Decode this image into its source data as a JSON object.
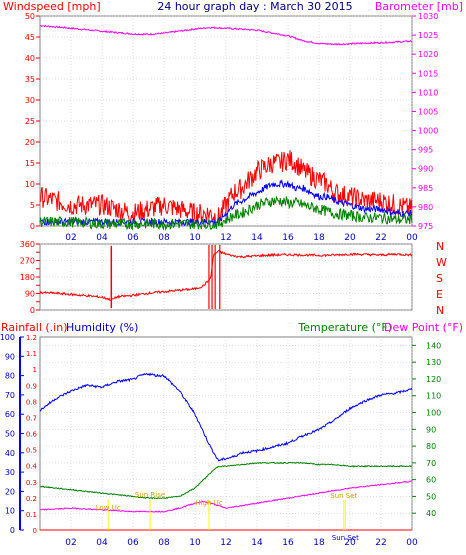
{
  "title": "24 hour graph day : March 30 2015",
  "colors": {
    "background": "#ffffff",
    "frame": "#808080",
    "grid": "#c0c0c0",
    "red": "#ff0000",
    "darkred": "#c00000",
    "magenta": "#ff00ff",
    "blue": "#0000ff",
    "darkblue": "#0000c0",
    "green": "#008000",
    "yellow": "#ffff00",
    "title": "#000080"
  },
  "labels": {
    "windspeed": "Windspeed [mph]",
    "barometer": "Barometer [mb]",
    "rainfall": "Rainfall (.in)",
    "humidity": "Humidity (%)",
    "temperature": "Temperature (°F)",
    "dewpoint": "Dew Point (°F)",
    "compass": [
      "N",
      "W",
      "S",
      "E",
      "N"
    ],
    "events": [
      {
        "text": "Low Uc",
        "x": 4.4
      },
      {
        "text": "Sun Rise",
        "x": 7.1
      },
      {
        "text": "High Uc",
        "x": 10.9
      },
      {
        "text": "Sun Set",
        "x": 19.6
      },
      {
        "text": "Sun Set",
        "x": 19.7
      }
    ]
  },
  "chart_data": [
    {
      "type": "line",
      "name": "wind-panel",
      "xlim": [
        0,
        24
      ],
      "x_ticks": [
        "02",
        "04",
        "06",
        "08",
        "10",
        "12",
        "14",
        "16",
        "18",
        "20",
        "22",
        "00"
      ],
      "left_axis": {
        "label": "Windspeed [mph]",
        "ylim": [
          0,
          50
        ],
        "ticks": [
          0,
          5,
          10,
          15,
          20,
          25,
          30,
          35,
          40,
          45,
          50
        ]
      },
      "right_axis": {
        "label": "Barometer [mb]",
        "ylim": [
          975,
          1030
        ],
        "ticks": [
          975,
          980,
          985,
          990,
          995,
          1000,
          1005,
          1010,
          1015,
          1020,
          1025,
          1030
        ]
      },
      "series": [
        {
          "axis": "right",
          "color": "magenta",
          "x": [
            0,
            2,
            4,
            6,
            7,
            8,
            10,
            11,
            12,
            14,
            16,
            17,
            18,
            19,
            20,
            21,
            22,
            23,
            24
          ],
          "y": [
            1027.5,
            1026.8,
            1026,
            1025.3,
            1025.2,
            1025.5,
            1026.6,
            1027,
            1026.8,
            1026.3,
            1024.8,
            1023.5,
            1022.8,
            1022.6,
            1022.7,
            1022.9,
            1023,
            1023.2,
            1023.4
          ]
        },
        {
          "axis": "left",
          "color": "red",
          "x": [
            0,
            1,
            2,
            3,
            4,
            5,
            6,
            7,
            8,
            9,
            10,
            11,
            11.5,
            12,
            12.5,
            13,
            13.5,
            14,
            14.5,
            15,
            15.5,
            16,
            16.5,
            17,
            17.5,
            18,
            18.5,
            19,
            20,
            21,
            22,
            23,
            24
          ],
          "y": [
            7,
            6,
            5,
            5,
            5,
            4,
            3,
            4,
            5,
            4,
            3,
            3,
            2,
            5,
            8,
            9,
            11,
            13,
            14,
            15,
            15,
            16,
            15,
            13,
            12,
            11,
            10,
            8,
            7,
            6,
            6,
            5,
            4
          ]
        },
        {
          "axis": "left",
          "color": "blue",
          "x": [
            0,
            4,
            8,
            11,
            11.5,
            12,
            12.5,
            13,
            13.5,
            14,
            14.5,
            15,
            15.5,
            16,
            16.5,
            17,
            17.5,
            18,
            18.5,
            19,
            20,
            21,
            22,
            23,
            24
          ],
          "y": [
            1,
            1,
            1,
            1,
            1,
            3,
            5,
            6,
            7,
            8,
            9,
            10,
            10,
            10,
            9,
            9,
            8,
            7,
            7,
            6,
            5,
            4,
            4,
            3,
            3
          ]
        },
        {
          "axis": "left",
          "color": "green",
          "x": [
            0,
            2,
            4,
            6,
            8,
            10,
            11,
            11.5,
            12,
            12.5,
            13,
            13.5,
            14,
            14.5,
            15,
            15.5,
            16,
            16.5,
            17,
            17.5,
            18,
            18.5,
            19,
            20,
            21,
            22,
            23,
            24
          ],
          "y": [
            1,
            1,
            0.5,
            0.5,
            0.5,
            0.5,
            0.5,
            0.5,
            1.5,
            2.5,
            3,
            4,
            5,
            5.5,
            6,
            6,
            5.5,
            5.5,
            5,
            4.5,
            4,
            3.5,
            3,
            2.5,
            2,
            2,
            1.5,
            1.5
          ]
        }
      ]
    },
    {
      "type": "line",
      "name": "direction-panel",
      "xlim": [
        0,
        24
      ],
      "left_axis": {
        "ylim": [
          0,
          360
        ],
        "ticks": [
          0,
          45,
          90,
          135,
          180,
          225,
          270,
          315,
          360
        ]
      },
      "series": [
        {
          "color": "red",
          "x": [
            0,
            1,
            2,
            3,
            4,
            4.6,
            5,
            6,
            7,
            8,
            9,
            10,
            10.5,
            11,
            11.2,
            11.5,
            12,
            12.5,
            13,
            14,
            15,
            16,
            17,
            18,
            19,
            20,
            21,
            22,
            23,
            24
          ],
          "y": [
            95,
            92,
            85,
            78,
            70,
            55,
            72,
            80,
            92,
            100,
            108,
            115,
            130,
            170,
            300,
            320,
            305,
            295,
            290,
            295,
            300,
            302,
            300,
            298,
            300,
            305,
            303,
            300,
            305,
            300
          ]
        }
      ]
    },
    {
      "type": "line",
      "name": "temperature-panel",
      "xlim": [
        0,
        24
      ],
      "x_ticks": [
        "02",
        "04",
        "06",
        "08",
        "10",
        "12",
        "14",
        "16",
        "18",
        "20",
        "22",
        "00"
      ],
      "left_axis": {
        "label": "Rainfall (.in)",
        "ylim": [
          0,
          1.2
        ],
        "ticks": [
          0,
          0.1,
          0.2,
          0.3,
          0.4,
          0.5,
          0.6,
          0.7,
          0.8,
          0.9,
          1,
          1.1,
          1.2
        ]
      },
      "humidity_axis": {
        "label": "Humidity (%)",
        "ylim": [
          0,
          100
        ],
        "ticks": [
          0,
          10,
          20,
          30,
          40,
          50,
          60,
          70,
          80,
          90,
          100
        ]
      },
      "right_axis": {
        "label": "Temperature (°F)",
        "ylim": [
          30,
          145
        ],
        "ticks": [
          40,
          50,
          60,
          70,
          80,
          90,
          100,
          110,
          120,
          130,
          140
        ]
      },
      "series": [
        {
          "axis": "humidity",
          "color": "blue",
          "x": [
            0,
            1,
            2,
            3,
            4,
            5,
            6,
            6.5,
            7,
            7.5,
            8,
            8.5,
            9,
            10,
            11,
            11.5,
            12,
            12.5,
            13,
            14,
            15,
            16,
            17,
            18,
            19,
            20,
            21,
            22,
            23,
            24
          ],
          "y": [
            62,
            68,
            72,
            75,
            74,
            77,
            78,
            80,
            81,
            80,
            80,
            76,
            72,
            60,
            43,
            36,
            37,
            38,
            40,
            41,
            43,
            45,
            49,
            52,
            57,
            63,
            67,
            70,
            71,
            73
          ]
        },
        {
          "axis": "right",
          "color": "green",
          "x": [
            0,
            1,
            2,
            3,
            4,
            5,
            6,
            7,
            8,
            9,
            10,
            11,
            11.5,
            12,
            13,
            14,
            15,
            16,
            17,
            18,
            19,
            20,
            21,
            22,
            23,
            24
          ],
          "y": [
            56,
            55,
            54,
            53,
            52,
            51,
            50,
            49,
            49,
            50,
            55,
            64,
            68,
            68,
            69,
            70,
            70,
            70,
            70,
            69,
            69,
            68,
            68,
            68,
            68,
            68
          ]
        },
        {
          "axis": "right",
          "color": "magenta",
          "x": [
            0,
            2,
            4,
            6,
            8,
            9,
            10,
            10.5,
            11,
            12,
            14,
            16,
            18,
            20,
            22,
            24
          ],
          "y": [
            42,
            43,
            42,
            41,
            41,
            43,
            46,
            47,
            46,
            43,
            46,
            49,
            52,
            55,
            57,
            59
          ]
        },
        {
          "axis": "left",
          "color": "red",
          "x": [
            0,
            24
          ],
          "y": [
            0,
            0
          ]
        }
      ]
    }
  ]
}
